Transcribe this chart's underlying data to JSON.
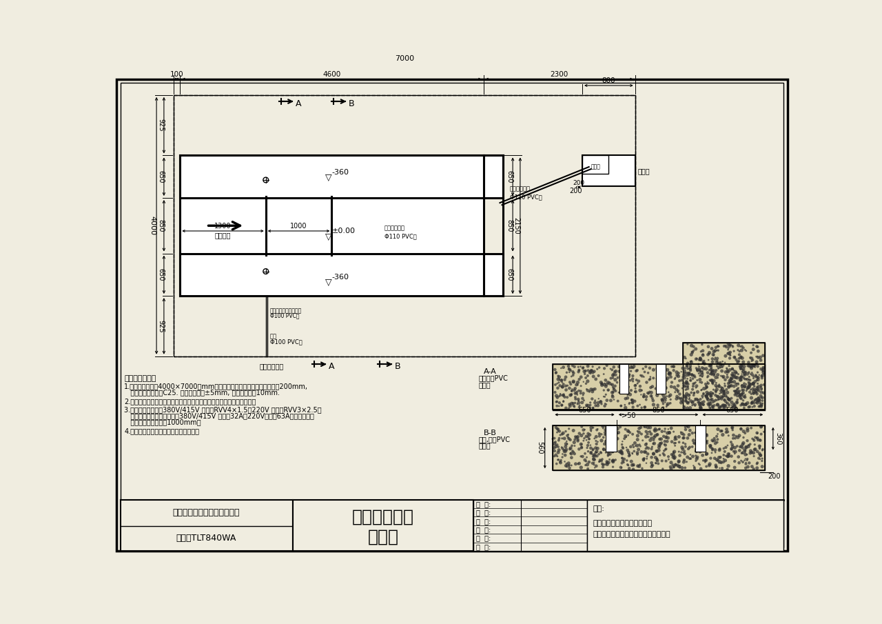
{
  "bg_color": "#f0ede0",
  "line_color": "#000000",
  "company": "深圳市元征科技股份有限公司",
  "model": "型号：TLT840WA",
  "title1": "地藏子母大剪",
  "title2": "地基图",
  "notes_title": "地基安装要求：",
  "note1": "1.在标准维修工位4000×7000（mm），举升机安装的混凝土厚度应大于200mm,",
  "note1b": "   混凝土强度应大于C25. 地基内平面度±5mm, 四边误差小于10mm.",
  "note2": "2.控制台的位置可以据场地实际情况改动，主机地坑与控制柜在同一侧。",
  "note3": "3.预留电源线规格：380V/415V 不低于RVV4×1.5，220V 不低于RVV3×2.5。",
  "note3b": "   （建议安装漏电保护开关，380V/415V 不低于32A，220V不低于63A），从出口处",
  "note3c": "   从出口处长度不小于1000mm。",
  "note4": "4.请按图施工，如有改动请与厂家联系。",
  "remarks1": "图型设计之版属本公司所有，",
  "remarks2": "未得本公司同意，不得另作其他用途。"
}
